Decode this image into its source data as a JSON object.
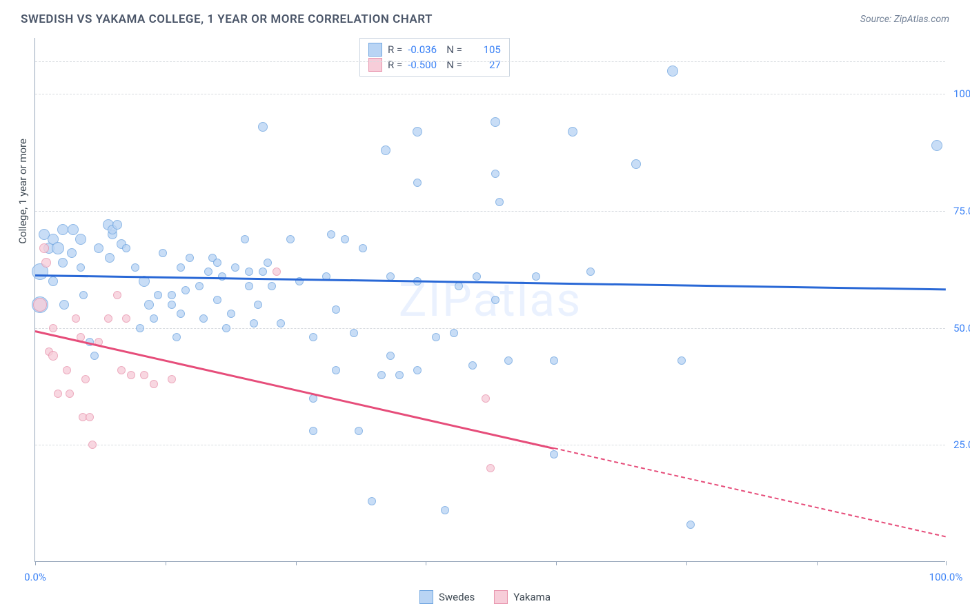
{
  "title": "SWEDISH VS YAKAMA COLLEGE, 1 YEAR OR MORE CORRELATION CHART",
  "source": "Source: ZipAtlas.com",
  "y_axis_title": "College, 1 year or more",
  "watermark": "ZIPatlas",
  "xlim": [
    0,
    100
  ],
  "ylim": [
    0,
    112
  ],
  "x_ticks": [
    0,
    14.3,
    28.6,
    42.9,
    57.2,
    71.5,
    85.8,
    100
  ],
  "x_tick_labels": {
    "0": "0.0%",
    "100": "100.0%"
  },
  "y_gridlines": [
    25,
    50,
    75,
    100,
    107
  ],
  "y_tick_labels": {
    "25": "25.0%",
    "50": "50.0%",
    "75": "75.0%",
    "100": "100.0%"
  },
  "series": [
    {
      "name": "Swedes",
      "fill": "#b9d4f4",
      "stroke": "#6fa5e0",
      "line": "#2968d6",
      "r_value": "-0.036",
      "n_value": "105",
      "trend": {
        "x1": 0,
        "y1": 61.5,
        "x2": 100,
        "y2": 58.5,
        "x_cut": 100
      },
      "points": [
        {
          "x": 0.5,
          "y": 55,
          "r": 12
        },
        {
          "x": 0.5,
          "y": 62,
          "r": 12
        },
        {
          "x": 1,
          "y": 70,
          "r": 8
        },
        {
          "x": 1.5,
          "y": 67,
          "r": 8
        },
        {
          "x": 2,
          "y": 69,
          "r": 8
        },
        {
          "x": 2,
          "y": 60,
          "r": 7
        },
        {
          "x": 2.5,
          "y": 67,
          "r": 9
        },
        {
          "x": 3,
          "y": 71,
          "r": 8
        },
        {
          "x": 3,
          "y": 64,
          "r": 7
        },
        {
          "x": 3.2,
          "y": 55,
          "r": 7
        },
        {
          "x": 4,
          "y": 66,
          "r": 7
        },
        {
          "x": 4.2,
          "y": 71,
          "r": 8
        },
        {
          "x": 5,
          "y": 69,
          "r": 8
        },
        {
          "x": 5,
          "y": 63,
          "r": 6
        },
        {
          "x": 5.3,
          "y": 57,
          "r": 6
        },
        {
          "x": 6,
          "y": 47,
          "r": 6
        },
        {
          "x": 6.5,
          "y": 44,
          "r": 6
        },
        {
          "x": 7,
          "y": 67,
          "r": 7
        },
        {
          "x": 8,
          "y": 72,
          "r": 8
        },
        {
          "x": 8.2,
          "y": 65,
          "r": 7
        },
        {
          "x": 8.5,
          "y": 70,
          "r": 7
        },
        {
          "x": 8.5,
          "y": 71,
          "r": 7
        },
        {
          "x": 9,
          "y": 72,
          "r": 7
        },
        {
          "x": 9.5,
          "y": 68,
          "r": 7
        },
        {
          "x": 10,
          "y": 67,
          "r": 6
        },
        {
          "x": 11,
          "y": 63,
          "r": 6
        },
        {
          "x": 11.5,
          "y": 50,
          "r": 6
        },
        {
          "x": 12,
          "y": 60,
          "r": 8
        },
        {
          "x": 12.5,
          "y": 55,
          "r": 7
        },
        {
          "x": 13,
          "y": 52,
          "r": 6
        },
        {
          "x": 13.5,
          "y": 57,
          "r": 6
        },
        {
          "x": 14,
          "y": 66,
          "r": 6
        },
        {
          "x": 15,
          "y": 55,
          "r": 6
        },
        {
          "x": 15,
          "y": 57,
          "r": 6
        },
        {
          "x": 15.5,
          "y": 48,
          "r": 6
        },
        {
          "x": 16,
          "y": 63,
          "r": 6
        },
        {
          "x": 16,
          "y": 53,
          "r": 6
        },
        {
          "x": 16.5,
          "y": 58,
          "r": 6
        },
        {
          "x": 17,
          "y": 65,
          "r": 6
        },
        {
          "x": 18,
          "y": 59,
          "r": 6
        },
        {
          "x": 18.5,
          "y": 52,
          "r": 6
        },
        {
          "x": 19,
          "y": 62,
          "r": 6
        },
        {
          "x": 19.5,
          "y": 65,
          "r": 6
        },
        {
          "x": 20,
          "y": 56,
          "r": 6
        },
        {
          "x": 20,
          "y": 64,
          "r": 6
        },
        {
          "x": 20.5,
          "y": 61,
          "r": 6
        },
        {
          "x": 21,
          "y": 50,
          "r": 6
        },
        {
          "x": 21.5,
          "y": 53,
          "r": 6
        },
        {
          "x": 22,
          "y": 63,
          "r": 6
        },
        {
          "x": 23,
          "y": 69,
          "r": 6
        },
        {
          "x": 23.5,
          "y": 62,
          "r": 6
        },
        {
          "x": 23.5,
          "y": 59,
          "r": 6
        },
        {
          "x": 24,
          "y": 51,
          "r": 6
        },
        {
          "x": 24.5,
          "y": 55,
          "r": 6
        },
        {
          "x": 25,
          "y": 93,
          "r": 7
        },
        {
          "x": 25,
          "y": 62,
          "r": 6
        },
        {
          "x": 25.5,
          "y": 64,
          "r": 6
        },
        {
          "x": 26,
          "y": 59,
          "r": 6
        },
        {
          "x": 27,
          "y": 51,
          "r": 6
        },
        {
          "x": 28,
          "y": 69,
          "r": 6
        },
        {
          "x": 29,
          "y": 60,
          "r": 6
        },
        {
          "x": 30.5,
          "y": 48,
          "r": 6
        },
        {
          "x": 30.5,
          "y": 35,
          "r": 6
        },
        {
          "x": 30.5,
          "y": 28,
          "r": 6
        },
        {
          "x": 32,
          "y": 61,
          "r": 6
        },
        {
          "x": 32.5,
          "y": 70,
          "r": 6
        },
        {
          "x": 33,
          "y": 54,
          "r": 6
        },
        {
          "x": 33,
          "y": 41,
          "r": 6
        },
        {
          "x": 34,
          "y": 69,
          "r": 6
        },
        {
          "x": 35,
          "y": 49,
          "r": 6
        },
        {
          "x": 35.5,
          "y": 28,
          "r": 6
        },
        {
          "x": 36,
          "y": 67,
          "r": 6
        },
        {
          "x": 37,
          "y": 13,
          "r": 6
        },
        {
          "x": 38,
          "y": 40,
          "r": 6
        },
        {
          "x": 38.5,
          "y": 88,
          "r": 7
        },
        {
          "x": 39,
          "y": 61,
          "r": 6
        },
        {
          "x": 39,
          "y": 44,
          "r": 6
        },
        {
          "x": 40,
          "y": 40,
          "r": 6
        },
        {
          "x": 42,
          "y": 92,
          "r": 7
        },
        {
          "x": 42,
          "y": 81,
          "r": 6
        },
        {
          "x": 42,
          "y": 60,
          "r": 6
        },
        {
          "x": 42,
          "y": 41,
          "r": 6
        },
        {
          "x": 44,
          "y": 48,
          "r": 6
        },
        {
          "x": 45,
          "y": 11,
          "r": 6
        },
        {
          "x": 46,
          "y": 49,
          "r": 6
        },
        {
          "x": 46.5,
          "y": 59,
          "r": 6
        },
        {
          "x": 48,
          "y": 42,
          "r": 6
        },
        {
          "x": 48.5,
          "y": 61,
          "r": 6
        },
        {
          "x": 50.5,
          "y": 83,
          "r": 6
        },
        {
          "x": 50.5,
          "y": 94,
          "r": 7
        },
        {
          "x": 50.5,
          "y": 56,
          "r": 6
        },
        {
          "x": 51,
          "y": 77,
          "r": 6
        },
        {
          "x": 52,
          "y": 43,
          "r": 6
        },
        {
          "x": 55,
          "y": 61,
          "r": 6
        },
        {
          "x": 57,
          "y": 43,
          "r": 6
        },
        {
          "x": 57,
          "y": 23,
          "r": 6
        },
        {
          "x": 59,
          "y": 92,
          "r": 7
        },
        {
          "x": 61,
          "y": 62,
          "r": 6
        },
        {
          "x": 66,
          "y": 85,
          "r": 7
        },
        {
          "x": 70,
          "y": 105,
          "r": 8
        },
        {
          "x": 71,
          "y": 43,
          "r": 6
        },
        {
          "x": 72,
          "y": 8,
          "r": 6
        },
        {
          "x": 99,
          "y": 89,
          "r": 8
        }
      ]
    },
    {
      "name": "Yakama",
      "fill": "#f7cdd9",
      "stroke": "#e895ae",
      "line": "#e64d7a",
      "r_value": "-0.500",
      "n_value": "27",
      "trend": {
        "x1": 0,
        "y1": 49.5,
        "x2": 100,
        "y2": 5.5,
        "x_cut": 57
      },
      "points": [
        {
          "x": 0.5,
          "y": 55,
          "r": 10
        },
        {
          "x": 1,
          "y": 67,
          "r": 7
        },
        {
          "x": 1.2,
          "y": 64,
          "r": 7
        },
        {
          "x": 1.5,
          "y": 45,
          "r": 6
        },
        {
          "x": 2,
          "y": 44,
          "r": 7
        },
        {
          "x": 2,
          "y": 50,
          "r": 6
        },
        {
          "x": 2.5,
          "y": 36,
          "r": 6
        },
        {
          "x": 3.5,
          "y": 41,
          "r": 6
        },
        {
          "x": 3.8,
          "y": 36,
          "r": 6
        },
        {
          "x": 4.5,
          "y": 52,
          "r": 6
        },
        {
          "x": 5,
          "y": 48,
          "r": 6
        },
        {
          "x": 5.2,
          "y": 31,
          "r": 6
        },
        {
          "x": 5.5,
          "y": 39,
          "r": 6
        },
        {
          "x": 6,
          "y": 31,
          "r": 6
        },
        {
          "x": 6.3,
          "y": 25,
          "r": 6
        },
        {
          "x": 7,
          "y": 47,
          "r": 6
        },
        {
          "x": 8,
          "y": 52,
          "r": 6
        },
        {
          "x": 9,
          "y": 57,
          "r": 6
        },
        {
          "x": 9.5,
          "y": 41,
          "r": 6
        },
        {
          "x": 10,
          "y": 52,
          "r": 6
        },
        {
          "x": 10.5,
          "y": 40,
          "r": 6
        },
        {
          "x": 12,
          "y": 40,
          "r": 6
        },
        {
          "x": 13,
          "y": 38,
          "r": 6
        },
        {
          "x": 15,
          "y": 39,
          "r": 6
        },
        {
          "x": 26.5,
          "y": 62,
          "r": 6
        },
        {
          "x": 49.5,
          "y": 35,
          "r": 6
        },
        {
          "x": 50,
          "y": 20,
          "r": 6
        }
      ]
    }
  ],
  "bottom_legend": [
    "Swedes",
    "Yakama"
  ]
}
